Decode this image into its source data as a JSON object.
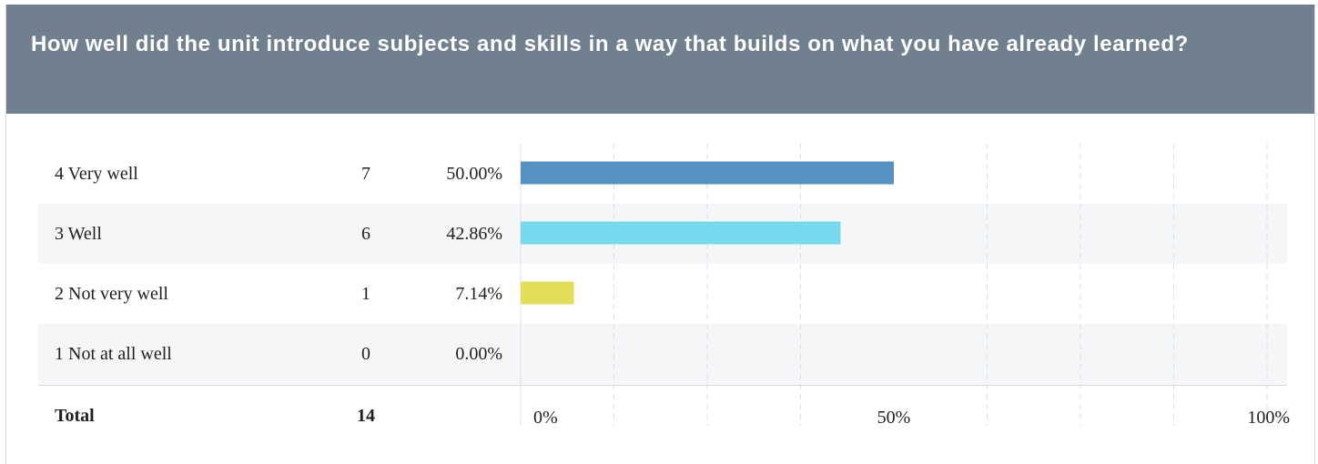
{
  "question": "How well did the unit introduce subjects and skills in a way that builds on what you have already learned?",
  "chart_data": {
    "type": "bar",
    "orientation": "horizontal",
    "categories": [
      "4 Very well",
      "3 Well",
      "2 Not very well",
      "1 Not at all well"
    ],
    "counts": [
      7,
      6,
      1,
      0
    ],
    "percent_labels": [
      "50.00%",
      "42.86%",
      "7.14%",
      "0.00%"
    ],
    "values": [
      50.0,
      42.86,
      7.14,
      0.0
    ],
    "colors": [
      "#5591c2",
      "#76d9ee",
      "#e3de5a",
      "#b8b8b8"
    ],
    "xlim": [
      0,
      100
    ],
    "xticks": [
      0,
      50,
      100
    ],
    "xtick_labels": [
      "0%",
      "50%",
      "100%"
    ],
    "grid": "vertical-dashed",
    "total_label": "Total",
    "total_count": 14
  }
}
